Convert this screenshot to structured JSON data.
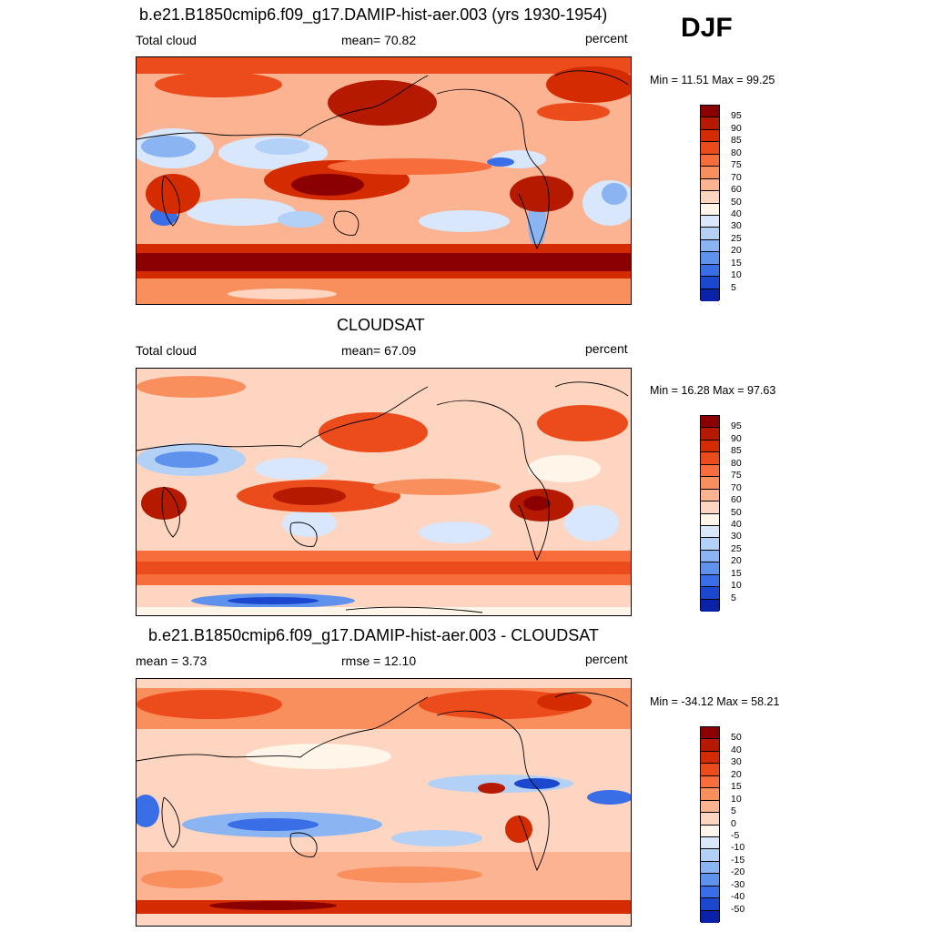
{
  "season": "DJF",
  "panels": [
    {
      "title": "b.e21.B1850cmip6.f09_g17.DAMIP-hist-aer.003 (yrs 1930-1954)",
      "left_label": "Total cloud",
      "center_label": "mean=  70.82",
      "right_label": "percent",
      "minmax": "Min =  11.51 Max =  99.25",
      "colorbar": {
        "levels": [
          "95",
          "90",
          "85",
          "80",
          "75",
          "70",
          "60",
          "50",
          "40",
          "30",
          "25",
          "20",
          "15",
          "10",
          "5"
        ],
        "colors": [
          "#8b0000",
          "#b51a00",
          "#d42c00",
          "#ec4b1b",
          "#f76d3c",
          "#fa8f5e",
          "#fcb392",
          "#fdd5c1",
          "#fff5e8",
          "#d8e7fb",
          "#b3d0f7",
          "#8bb4f2",
          "#5e92ec",
          "#3a6ee6",
          "#1c47cf",
          "#0a22a8"
        ]
      },
      "map_base": "#fcb392"
    },
    {
      "title": "CLOUDSAT",
      "left_label": "Total cloud",
      "center_label": "mean=  67.09",
      "right_label": "percent",
      "minmax": "Min =  16.28 Max =  97.63",
      "colorbar": {
        "levels": [
          "95",
          "90",
          "85",
          "80",
          "75",
          "70",
          "60",
          "50",
          "40",
          "30",
          "25",
          "20",
          "15",
          "10",
          "5"
        ],
        "colors": [
          "#8b0000",
          "#b51a00",
          "#d42c00",
          "#ec4b1b",
          "#f76d3c",
          "#fa8f5e",
          "#fcb392",
          "#fdd5c1",
          "#fff5e8",
          "#d8e7fb",
          "#b3d0f7",
          "#8bb4f2",
          "#5e92ec",
          "#3a6ee6",
          "#1c47cf",
          "#0a22a8"
        ]
      },
      "map_base": "#fdd5c1"
    },
    {
      "title": "b.e21.B1850cmip6.f09_g17.DAMIP-hist-aer.003 - CLOUDSAT",
      "left_label": "mean =   3.73",
      "center_label": "rmse =  12.10",
      "right_label": "percent",
      "minmax": "Min = -34.12 Max =  58.21",
      "colorbar": {
        "levels": [
          "50",
          "40",
          "30",
          "20",
          "15",
          "10",
          "5",
          "0",
          "-5",
          "-10",
          "-15",
          "-20",
          "-30",
          "-40",
          "-50"
        ],
        "colors": [
          "#8b0000",
          "#b51a00",
          "#d42c00",
          "#ec4b1b",
          "#f76d3c",
          "#fa8f5e",
          "#fcb392",
          "#fdd5c1",
          "#fff5e8",
          "#d8e7fb",
          "#b3d0f7",
          "#8bb4f2",
          "#5e92ec",
          "#3a6ee6",
          "#1c47cf",
          "#0a22a8"
        ]
      },
      "map_base": "#fdd5c1"
    }
  ]
}
